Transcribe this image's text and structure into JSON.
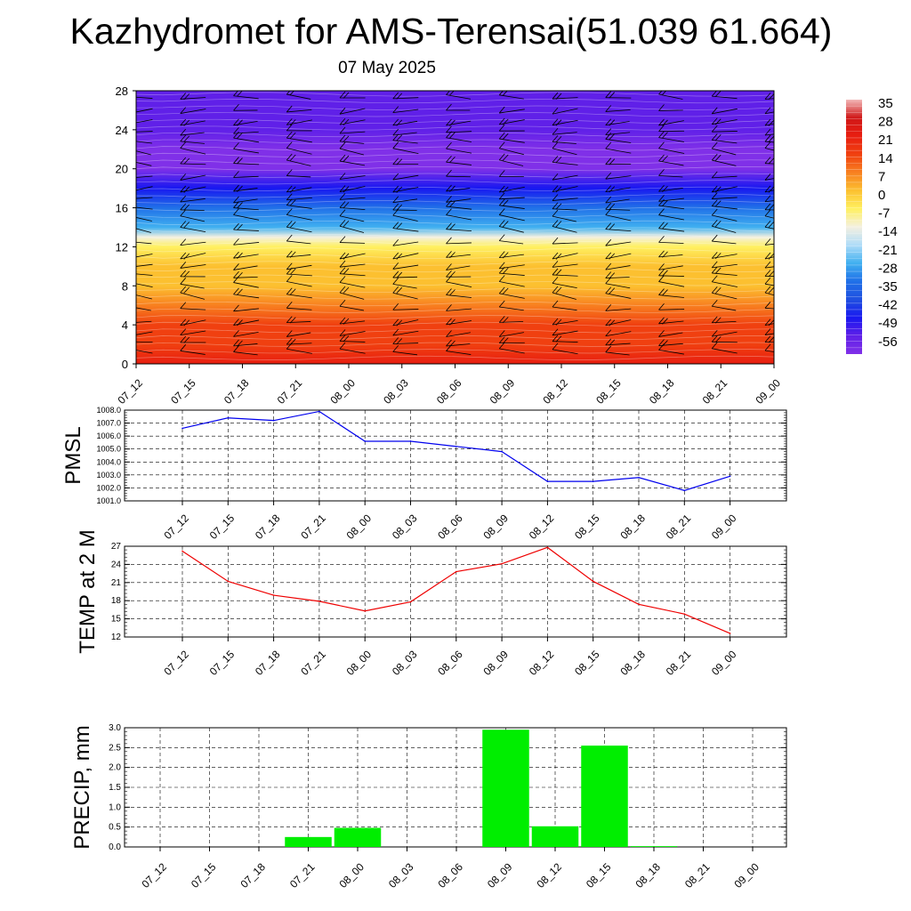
{
  "title": "Kazhydromet for AMS-Terensai(51.039 61.664)",
  "subtitle": "07 May 2025",
  "chart_data": [
    {
      "type": "heatmap",
      "description_panel": "cross-section",
      "x_ticks": [
        "07_12",
        "07_15",
        "07_18",
        "07_21",
        "08_00",
        "08_03",
        "08_06",
        "08_09",
        "08_12",
        "08_15",
        "08_18",
        "08_21",
        "09_00"
      ],
      "y_ticks": [
        0,
        4,
        8,
        12,
        16,
        20,
        24,
        28
      ],
      "ylim": [
        0,
        28
      ],
      "colorbar_labels": [
        35,
        28,
        21,
        14,
        7,
        0,
        -7,
        -14,
        -21,
        -28,
        -35,
        -42,
        -49,
        -56
      ],
      "temperature_profile": [
        {
          "y": 0,
          "t": 22
        },
        {
          "y": 2,
          "t": 19
        },
        {
          "y": 4,
          "t": 15
        },
        {
          "y": 6,
          "t": 10
        },
        {
          "y": 8,
          "t": 5
        },
        {
          "y": 10,
          "t": 0
        },
        {
          "y": 12,
          "t": -6
        },
        {
          "y": 13,
          "t": -14
        },
        {
          "y": 14,
          "t": -24
        },
        {
          "y": 16,
          "t": -34
        },
        {
          "y": 18,
          "t": -48
        },
        {
          "y": 20,
          "t": -58
        },
        {
          "y": 22,
          "t": -60
        },
        {
          "y": 24,
          "t": -56
        },
        {
          "y": 26,
          "t": -52
        },
        {
          "y": 28,
          "t": -50
        }
      ],
      "colors": {
        "t35": "#f2b8b8",
        "t28": "#d01818",
        "t21": "#e81e10",
        "t14": "#f04010",
        "t7": "#f88020",
        "t0": "#fcc030",
        "tm7": "#fff060",
        "tm14": "#f4f0e0",
        "tm21": "#b0dcf8",
        "tm28": "#40b0f0",
        "tm35": "#2070e8",
        "tm42": "#2050e0",
        "tm49": "#1818f0",
        "tm56": "#6020e8",
        "tm60": "#8030e8"
      }
    },
    {
      "type": "line",
      "ylabel": "PMSL",
      "categories": [
        "07_12",
        "07_15",
        "07_18",
        "07_21",
        "08_00",
        "08_03",
        "08_06",
        "08_09",
        "08_12",
        "08_15",
        "08_18",
        "08_21",
        "09_00"
      ],
      "y_ticks": [
        "1008.0",
        "1007.0",
        "1006.0",
        "1005.0",
        "1004.0",
        "1003.0",
        "1002.0",
        "1001.0"
      ],
      "ylim": [
        1001.0,
        1008.0
      ],
      "values": [
        1006.6,
        1007.4,
        1007.2,
        1007.9,
        1005.6,
        1005.6,
        1005.2,
        1004.8,
        1002.5,
        1002.5,
        1002.8,
        1001.8,
        1002.9
      ],
      "color": "#0000ee",
      "grid": true
    },
    {
      "type": "line",
      "ylabel": "TEMP at 2 M",
      "categories": [
        "07_12",
        "07_15",
        "07_18",
        "07_21",
        "08_00",
        "08_03",
        "08_06",
        "08_09",
        "08_12",
        "08_15",
        "08_18",
        "08_21",
        "09_00"
      ],
      "y_ticks": [
        "27",
        "24",
        "21",
        "18",
        "15",
        "12"
      ],
      "ylim": [
        12,
        27
      ],
      "values": [
        26.2,
        21.2,
        18.9,
        17.9,
        16.3,
        17.8,
        22.8,
        24.1,
        26.8,
        21.2,
        17.4,
        15.8,
        12.6
      ],
      "color": "#ee0000",
      "grid": true
    },
    {
      "type": "bar",
      "ylabel": "PRECIP, mm",
      "categories": [
        "07_12",
        "07_15",
        "07_18",
        "07_21",
        "08_00",
        "08_03",
        "08_06",
        "08_09",
        "08_12",
        "08_15",
        "08_18",
        "08_21",
        "09_00"
      ],
      "y_ticks": [
        "3.0",
        "2.5",
        "2.0",
        "1.5",
        "1.0",
        "0.5",
        "0.0"
      ],
      "ylim": [
        0,
        3.0
      ],
      "values": [
        0,
        0,
        0,
        0.25,
        0.48,
        0,
        0,
        2.95,
        0.52,
        2.55,
        0.02,
        0,
        0
      ],
      "color": "#00ee00",
      "grid": true
    }
  ]
}
